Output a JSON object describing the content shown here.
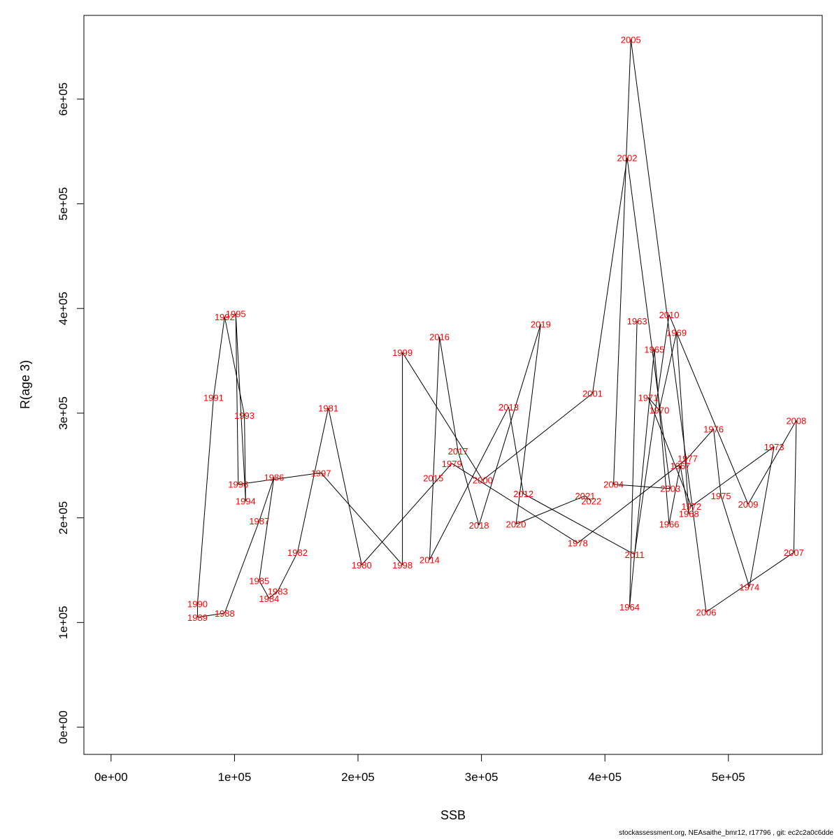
{
  "chart_data": {
    "type": "line",
    "xlabel": "SSB",
    "ylabel": "R(age 3)",
    "xlim": [
      -22000,
      576000
    ],
    "ylim": [
      -26000,
      680000
    ],
    "x_ticks": [
      0,
      100000,
      200000,
      300000,
      400000,
      500000
    ],
    "x_tick_labels": [
      "0e+00",
      "1e+05",
      "2e+05",
      "3e+05",
      "4e+05",
      "5e+05"
    ],
    "y_ticks": [
      0,
      100000,
      200000,
      300000,
      400000,
      500000,
      600000
    ],
    "y_tick_labels": [
      "0e+00",
      "1e+05",
      "2e+05",
      "3e+05",
      "4e+05",
      "5e+05",
      "6e+05"
    ],
    "line_color": "#000000",
    "label_color": "#ff0000",
    "footer": "stockassessment.org, NEAsaithe_bmr12, r17796 , git: ec2c2a0c6dde",
    "points": [
      {
        "year": "1963",
        "ssb": 426000,
        "r": 388000
      },
      {
        "year": "1964",
        "ssb": 420000,
        "r": 115000
      },
      {
        "year": "1965",
        "ssb": 440000,
        "r": 361000
      },
      {
        "year": "1966",
        "ssb": 452000,
        "r": 194000
      },
      {
        "year": "1967",
        "ssb": 461000,
        "r": 250000
      },
      {
        "year": "1968",
        "ssb": 468000,
        "r": 204000
      },
      {
        "year": "1969",
        "ssb": 458000,
        "r": 377000
      },
      {
        "year": "1970",
        "ssb": 444000,
        "r": 303000
      },
      {
        "year": "1971",
        "ssb": 435000,
        "r": 315000
      },
      {
        "year": "1972",
        "ssb": 470000,
        "r": 211000
      },
      {
        "year": "1973",
        "ssb": 537000,
        "r": 268000
      },
      {
        "year": "1974",
        "ssb": 517000,
        "r": 134000
      },
      {
        "year": "1975",
        "ssb": 494000,
        "r": 221000
      },
      {
        "year": "1976",
        "ssb": 488000,
        "r": 285000
      },
      {
        "year": "1977",
        "ssb": 467000,
        "r": 257000
      },
      {
        "year": "1978",
        "ssb": 378000,
        "r": 176000
      },
      {
        "year": "1979",
        "ssb": 276000,
        "r": 252000
      },
      {
        "year": "1980",
        "ssb": 203000,
        "r": 155000
      },
      {
        "year": "1981",
        "ssb": 176000,
        "r": 305000
      },
      {
        "year": "1982",
        "ssb": 151000,
        "r": 167000
      },
      {
        "year": "1983",
        "ssb": 135000,
        "r": 130000
      },
      {
        "year": "1984",
        "ssb": 128000,
        "r": 123000
      },
      {
        "year": "1985",
        "ssb": 120000,
        "r": 140000
      },
      {
        "year": "1986",
        "ssb": 132000,
        "r": 239000
      },
      {
        "year": "1987",
        "ssb": 120000,
        "r": 197000
      },
      {
        "year": "1988",
        "ssb": 92000,
        "r": 109000
      },
      {
        "year": "1989",
        "ssb": 70000,
        "r": 105000
      },
      {
        "year": "1990",
        "ssb": 70000,
        "r": 118000
      },
      {
        "year": "1991",
        "ssb": 83000,
        "r": 315000
      },
      {
        "year": "1992",
        "ssb": 92000,
        "r": 392000
      },
      {
        "year": "1993",
        "ssb": 108000,
        "r": 298000
      },
      {
        "year": "1994",
        "ssb": 109000,
        "r": 216000
      },
      {
        "year": "1995",
        "ssb": 101000,
        "r": 395000
      },
      {
        "year": "1996",
        "ssb": 103000,
        "r": 232000
      },
      {
        "year": "1997",
        "ssb": 170000,
        "r": 243000
      },
      {
        "year": "1998",
        "ssb": 236000,
        "r": 155000
      },
      {
        "year": "1999",
        "ssb": 236000,
        "r": 358000
      },
      {
        "year": "2000",
        "ssb": 301000,
        "r": 236000
      },
      {
        "year": "2001",
        "ssb": 390000,
        "r": 319000
      },
      {
        "year": "2002",
        "ssb": 418000,
        "r": 544000
      },
      {
        "year": "2003",
        "ssb": 453000,
        "r": 228000
      },
      {
        "year": "2004",
        "ssb": 407000,
        "r": 232000
      },
      {
        "year": "2005",
        "ssb": 421000,
        "r": 657000
      },
      {
        "year": "2006",
        "ssb": 482000,
        "r": 110000
      },
      {
        "year": "2007",
        "ssb": 553000,
        "r": 167000
      },
      {
        "year": "2008",
        "ssb": 555000,
        "r": 293000
      },
      {
        "year": "2009",
        "ssb": 516000,
        "r": 213000
      },
      {
        "year": "2010",
        "ssb": 452000,
        "r": 394000
      },
      {
        "year": "2011",
        "ssb": 424000,
        "r": 165000
      },
      {
        "year": "2012",
        "ssb": 334000,
        "r": 223000
      },
      {
        "year": "2013",
        "ssb": 322000,
        "r": 306000
      },
      {
        "year": "2014",
        "ssb": 258000,
        "r": 160000
      },
      {
        "year": "2015",
        "ssb": 261000,
        "r": 238000
      },
      {
        "year": "2016",
        "ssb": 266000,
        "r": 373000
      },
      {
        "year": "2017",
        "ssb": 281000,
        "r": 264000
      },
      {
        "year": "2018",
        "ssb": 298000,
        "r": 193000
      },
      {
        "year": "2019",
        "ssb": 348000,
        "r": 385000
      },
      {
        "year": "2020",
        "ssb": 328000,
        "r": 194000
      },
      {
        "year": "2021",
        "ssb": 384000,
        "r": 221000
      },
      {
        "year": "2022",
        "ssb": 389000,
        "r": 216000
      }
    ]
  }
}
